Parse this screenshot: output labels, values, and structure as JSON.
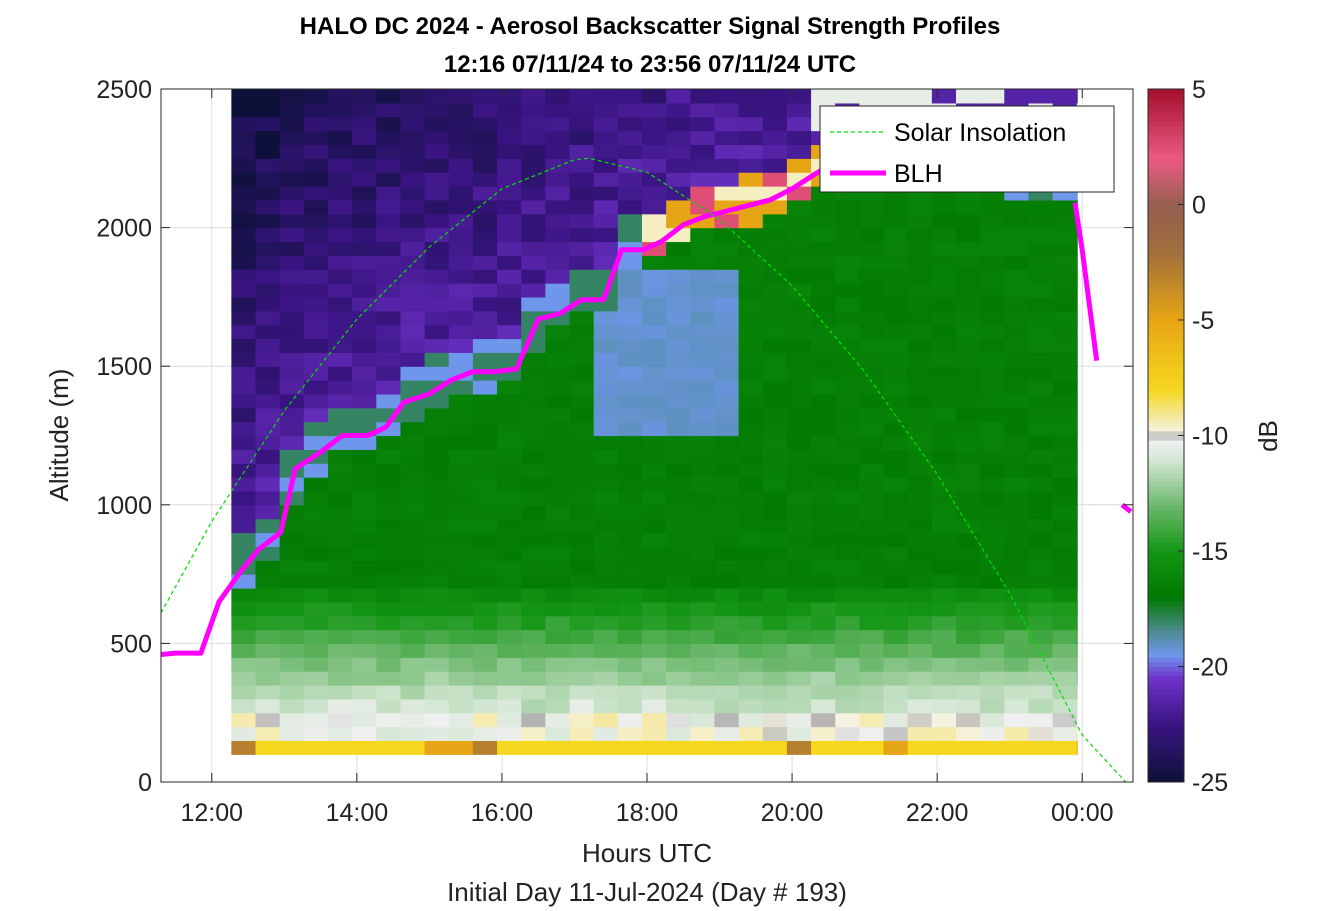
{
  "chart_data": {
    "type": "heatmap",
    "title_line1": "HALO DC 2024 - Aerosol Backscatter Signal Strength Profiles",
    "title_line2": "12:16 07/11/24 to 23:56 07/11/24  UTC",
    "xlabel": "Hours UTC",
    "xlabel2": "Initial Day 11-Jul-2024 (Day # 193)",
    "ylabel": "Altitude (m)",
    "colorbar_label": "dB",
    "xlim": [
      11.3,
      24.7
    ],
    "ylim": [
      0,
      2500
    ],
    "clim": [
      -25,
      5
    ],
    "x_ticks": [
      12,
      14,
      16,
      18,
      20,
      22,
      24
    ],
    "x_tick_labels": [
      "12:00",
      "14:00",
      "16:00",
      "18:00",
      "20:00",
      "22:00",
      "00:00"
    ],
    "y_ticks": [
      0,
      500,
      1000,
      1500,
      2000,
      2500
    ],
    "y_tick_labels": [
      "0",
      "500",
      "1000",
      "1500",
      "2000",
      "2500"
    ],
    "colorbar_ticks": [
      5,
      0,
      -5,
      -10,
      -15,
      -20,
      -25
    ],
    "colorbar_tick_labels": [
      "5",
      "0",
      "-5",
      "-10",
      "-15",
      "-20",
      "-25"
    ],
    "grid": true,
    "legend_position": "top-right",
    "data_time_range": [
      12.27,
      23.93
    ],
    "profile_interval_hours": 0.333,
    "altitude_bin_m": 50,
    "lowest_bin_m": 100,
    "legend": [
      "Solar Insolation",
      "BLH"
    ],
    "colors": {
      "solar": "#00e000",
      "blh": "#ff00ff",
      "grid": "#dcdcdc",
      "axis": "#262626"
    },
    "series": [
      {
        "name": "BLH",
        "type": "line",
        "x": [
          11.3,
          11.5,
          11.85,
          12.1,
          12.4,
          12.65,
          12.95,
          13.15,
          13.5,
          13.8,
          14.15,
          14.4,
          14.65,
          15.0,
          15.3,
          15.6,
          15.9,
          16.2,
          16.5,
          16.8,
          17.1,
          17.4,
          17.65,
          17.95,
          18.2,
          18.5,
          18.8,
          19.1,
          19.4,
          19.7,
          20.0,
          20.3,
          20.55
        ],
        "y": [
          460,
          465,
          465,
          650,
          760,
          840,
          900,
          1130,
          1190,
          1250,
          1250,
          1280,
          1370,
          1400,
          1450,
          1480,
          1480,
          1490,
          1670,
          1690,
          1740,
          1740,
          1920,
          1920,
          1950,
          2010,
          2040,
          2060,
          2080,
          2100,
          2140,
          2190,
          2230
        ]
      },
      {
        "name": "BLH",
        "type": "line",
        "segment": 2,
        "x": [
          23.9,
          24.0,
          24.2
        ],
        "y": [
          2090,
          1920,
          1520
        ]
      },
      {
        "name": "BLH",
        "type": "line",
        "segment": 3,
        "x": [
          24.55,
          24.67
        ],
        "y": [
          1000,
          975
        ]
      },
      {
        "name": "Solar Insolation",
        "type": "line",
        "style": "dashed",
        "peak_x": 17.2,
        "peak_y": 2250,
        "x": [
          11.3,
          12.0,
          13.0,
          14.0,
          15.0,
          16.0,
          17.0,
          17.2,
          18.0,
          19.0,
          20.0,
          21.0,
          22.0,
          23.0,
          24.0,
          24.6
        ],
        "y": [
          610,
          940,
          1340,
          1670,
          1930,
          2140,
          2245,
          2250,
          2200,
          2030,
          1790,
          1480,
          1110,
          680,
          170,
          0
        ]
      }
    ]
  }
}
